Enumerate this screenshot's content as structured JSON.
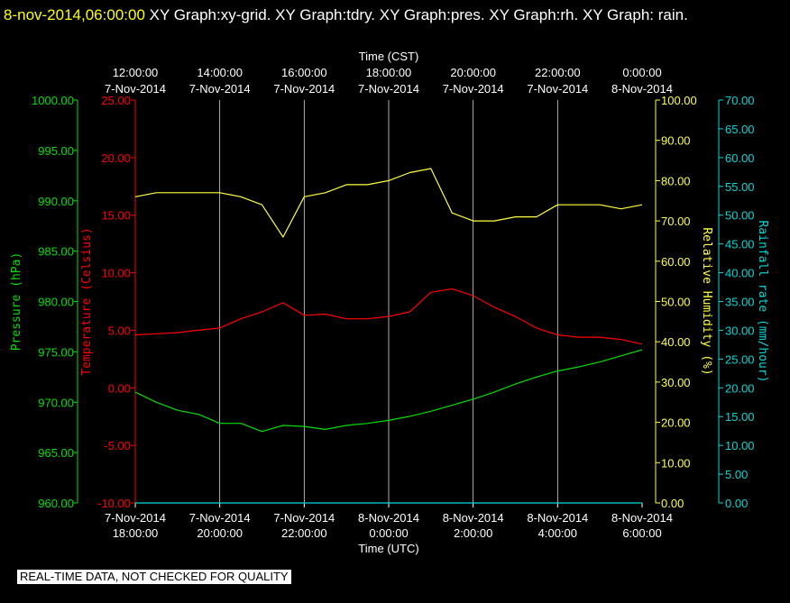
{
  "header": {
    "timestamp": "8-nov-2014,06:00:00",
    "titles": "XY Graph:xy-grid.  XY Graph:tdry.  XY Graph:pres.  XY Graph:rh.  XY Graph: rain."
  },
  "notice": "REAL-TIME DATA, NOT CHECKED FOR QUALITY",
  "colors": {
    "background": "#000000",
    "pressure": "#00e000",
    "temperature": "#ff0000",
    "humidity": "#ffff40",
    "rainfall": "#00d8d8",
    "axes": "#ffffff",
    "grid": "#ffffff"
  },
  "chart_data": {
    "type": "line",
    "grid": true,
    "top_axis": {
      "label": "Time (CST)",
      "ticks": [
        {
          "time": "12:00:00",
          "date": "7-Nov-2014"
        },
        {
          "time": "14:00:00",
          "date": "7-Nov-2014"
        },
        {
          "time": "16:00:00",
          "date": "7-Nov-2014"
        },
        {
          "time": "18:00:00",
          "date": "7-Nov-2014"
        },
        {
          "time": "20:00:00",
          "date": "7-Nov-2014"
        },
        {
          "time": "22:00:00",
          "date": "7-Nov-2014"
        },
        {
          "time": "0:00:00",
          "date": "8-Nov-2014"
        }
      ]
    },
    "bottom_axis": {
      "label": "Time (UTC)",
      "range": [
        "2014-11-07 18:00",
        "2014-11-08 06:00"
      ],
      "ticks": [
        {
          "date": "7-Nov-2014",
          "time": "18:00:00"
        },
        {
          "date": "7-Nov-2014",
          "time": "20:00:00"
        },
        {
          "date": "7-Nov-2014",
          "time": "22:00:00"
        },
        {
          "date": "8-Nov-2014",
          "time": "0:00:00"
        },
        {
          "date": "8-Nov-2014",
          "time": "2:00:00"
        },
        {
          "date": "8-Nov-2014",
          "time": "4:00:00"
        },
        {
          "date": "8-Nov-2014",
          "time": "6:00:00"
        }
      ]
    },
    "axes": {
      "pressure": {
        "label": "Pressure (hPa)",
        "range": [
          960,
          1000
        ],
        "ticks": [
          "960.00",
          "965.00",
          "970.00",
          "975.00",
          "980.00",
          "985.00",
          "990.00",
          "995.00",
          "1000.00"
        ]
      },
      "temperature": {
        "label": "Temperature (Celsius)",
        "range": [
          -10,
          25
        ],
        "ticks": [
          "-10.00",
          "-5.00",
          "0.00",
          "5.00",
          "10.00",
          "15.00",
          "20.00",
          "25.00"
        ]
      },
      "humidity": {
        "label": "Relative Humidity (%)",
        "range": [
          0,
          100
        ],
        "ticks": [
          "0.00",
          "10.00",
          "20.00",
          "30.00",
          "40.00",
          "50.00",
          "60.00",
          "70.00",
          "80.00",
          "90.00",
          "100.00"
        ]
      },
      "rainfall": {
        "label": "Rainfall rate (mm/hour)",
        "range": [
          0,
          70
        ],
        "ticks": [
          "0.00",
          "5.00",
          "10.00",
          "15.00",
          "20.00",
          "25.00",
          "30.00",
          "35.00",
          "40.00",
          "45.00",
          "50.00",
          "55.00",
          "60.00",
          "65.00",
          "70.00"
        ]
      }
    },
    "x_hours_utc": [
      0,
      0.5,
      1,
      1.5,
      2,
      2.5,
      3,
      3.5,
      4,
      4.5,
      5,
      5.5,
      6,
      6.5,
      7,
      7.5,
      8,
      8.5,
      9,
      9.5,
      10,
      10.5,
      11,
      11.5,
      12
    ],
    "series": [
      {
        "name": "Pressure (hPa)",
        "axis": "pressure",
        "color": "#00e000",
        "values": [
          971.0,
          970.0,
          969.2,
          968.8,
          967.9,
          967.9,
          967.1,
          967.7,
          967.6,
          967.3,
          967.7,
          967.9,
          968.2,
          968.6,
          969.1,
          969.7,
          970.3,
          971.0,
          971.8,
          972.5,
          973.1,
          973.5,
          974.0,
          974.6,
          975.2
        ]
      },
      {
        "name": "Temperature (Celsius)",
        "axis": "temperature",
        "color": "#ff0000",
        "values": [
          4.6,
          4.7,
          4.8,
          5.0,
          5.2,
          6.0,
          6.6,
          7.4,
          6.3,
          6.4,
          6.0,
          6.0,
          6.2,
          6.6,
          8.3,
          8.6,
          8.0,
          7.0,
          6.2,
          5.2,
          4.6,
          4.4,
          4.4,
          4.2,
          3.8
        ]
      },
      {
        "name": "Relative Humidity (%)",
        "axis": "humidity",
        "color": "#ffff40",
        "values": [
          76,
          77,
          77,
          77,
          77,
          76,
          74,
          66,
          76,
          77,
          79,
          79,
          80,
          82,
          83,
          72,
          70,
          70,
          71,
          71,
          74,
          74,
          74,
          73,
          74
        ]
      },
      {
        "name": "Rainfall rate (mm/hour)",
        "axis": "rainfall",
        "color": "#00d8d8",
        "values": [
          0,
          0,
          0,
          0,
          0,
          0,
          0,
          0,
          0,
          0,
          0,
          0,
          0,
          0,
          0,
          0,
          0,
          0,
          0,
          0,
          0,
          0,
          0,
          0,
          0
        ]
      }
    ]
  }
}
